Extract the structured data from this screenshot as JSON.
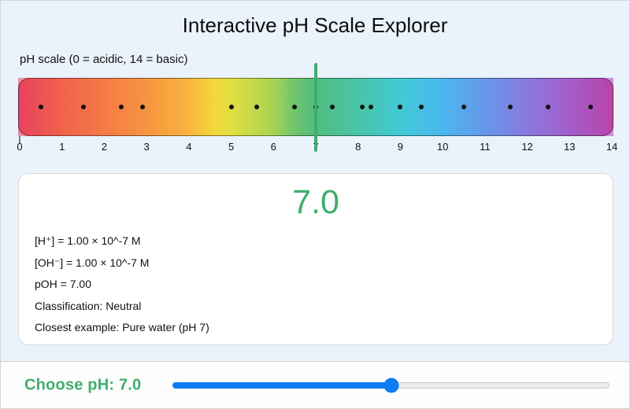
{
  "app": {
    "title": "Interactive pH Scale Explorer"
  },
  "colors": {
    "background": "#eaf2fb",
    "accent_green": "#3fae6e",
    "slider_blue": "#0b7cf2",
    "dot_color": "#111111",
    "card_background": "#ffffff"
  },
  "scale": {
    "label": "pH scale (0 = acidic, 14 = basic)",
    "min": 0,
    "max": 14,
    "tick_labels": [
      "0",
      "1",
      "2",
      "3",
      "4",
      "5",
      "6",
      "7",
      "8",
      "9",
      "10",
      "11",
      "12",
      "13",
      "14"
    ],
    "dots_ph": [
      0.5,
      1.5,
      2.4,
      2.9,
      5.0,
      5.6,
      6.5,
      7.0,
      7.4,
      8.1,
      8.3,
      9.0,
      9.5,
      10.5,
      11.6,
      12.5,
      13.5
    ],
    "marker_ph": 7,
    "gradient_stops": [
      {
        "pos": 0,
        "color": "#e8435c"
      },
      {
        "pos": 7.1,
        "color": "#f1604d"
      },
      {
        "pos": 14.3,
        "color": "#f57a45"
      },
      {
        "pos": 21.4,
        "color": "#f79440"
      },
      {
        "pos": 28.6,
        "color": "#f9b43d"
      },
      {
        "pos": 33.0,
        "color": "#f2d83e"
      },
      {
        "pos": 36.0,
        "color": "#dfdf41"
      },
      {
        "pos": 42.9,
        "color": "#a8d354"
      },
      {
        "pos": 46.4,
        "color": "#6fc46d"
      },
      {
        "pos": 50.0,
        "color": "#52bd80"
      },
      {
        "pos": 57.1,
        "color": "#48c4a8"
      },
      {
        "pos": 64.3,
        "color": "#41c9d6"
      },
      {
        "pos": 71.4,
        "color": "#4bb7ee"
      },
      {
        "pos": 78.6,
        "color": "#6697ea"
      },
      {
        "pos": 85.7,
        "color": "#8979de"
      },
      {
        "pos": 92.9,
        "color": "#a55dcb"
      },
      {
        "pos": 100,
        "color": "#b844a9"
      }
    ]
  },
  "reading": {
    "ph_value": "7.0",
    "lines": [
      "[H⁺] = 1.00 × 10^-7 M",
      "[OH⁻] = 1.00 × 10^-7 M",
      "pOH = 7.00",
      "Classification: Neutral",
      "Closest example: Pure water (pH 7)"
    ]
  },
  "slider": {
    "label": "Choose pH: 7.0",
    "min": 0,
    "max": 14,
    "value": 7
  }
}
